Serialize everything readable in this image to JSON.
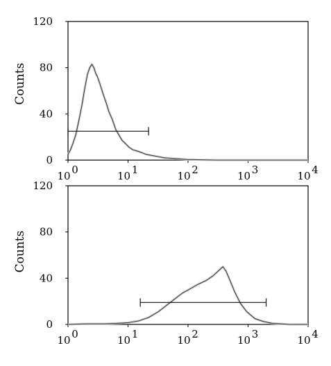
{
  "chart_data": [
    {
      "type": "area",
      "title": "",
      "xlabel": "",
      "ylabel": "Counts",
      "xscale": "log",
      "xlim": [
        1,
        10000
      ],
      "ylim": [
        0,
        120
      ],
      "grid": false,
      "y_ticks": [
        0,
        40,
        80,
        120
      ],
      "x_ticks": [
        {
          "base": "10",
          "exp": "0"
        },
        {
          "base": "10",
          "exp": "1"
        },
        {
          "base": "10",
          "exp": "2"
        },
        {
          "base": "10",
          "exp": "3"
        },
        {
          "base": "10",
          "exp": "4"
        }
      ],
      "series": [
        {
          "x": [
            1.0,
            1.1,
            1.2,
            1.35,
            1.5,
            1.7,
            1.9,
            2.1,
            2.3,
            2.5,
            2.7,
            2.9,
            3.1,
            3.4,
            3.8,
            4.3,
            4.8,
            5.5,
            6.2,
            7.0,
            8.0,
            9.2,
            10.5,
            12,
            14,
            17,
            20,
            25,
            32,
            40,
            55,
            75,
            100,
            150,
            300,
            1000,
            10000
          ],
          "values": [
            5,
            9,
            14,
            22,
            33,
            47,
            62,
            74,
            80,
            83,
            80,
            75,
            72,
            66,
            58,
            50,
            42,
            35,
            27,
            22,
            17,
            14,
            11,
            9,
            8,
            6.5,
            5,
            4,
            3,
            2,
            1.5,
            1,
            0.5,
            0.3,
            0,
            0,
            0
          ]
        }
      ],
      "gate": {
        "x": [
          1.0,
          22
        ],
        "y": 25
      }
    },
    {
      "type": "area",
      "title": "",
      "xlabel": "",
      "ylabel": "Counts",
      "xscale": "log",
      "xlim": [
        1,
        10000
      ],
      "ylim": [
        0,
        120
      ],
      "grid": false,
      "y_ticks": [
        0,
        40,
        80,
        120
      ],
      "x_ticks": [
        {
          "base": "10",
          "exp": "0"
        },
        {
          "base": "10",
          "exp": "1"
        },
        {
          "base": "10",
          "exp": "2"
        },
        {
          "base": "10",
          "exp": "3"
        },
        {
          "base": "10",
          "exp": "4"
        }
      ],
      "series": [
        {
          "x": [
            1,
            2,
            4,
            7,
            10,
            15,
            22,
            32,
            45,
            60,
            80,
            110,
            150,
            200,
            260,
            330,
            380,
            430,
            500,
            600,
            750,
            950,
            1300,
            1800,
            2500,
            3500,
            5000,
            10000
          ],
          "values": [
            0,
            0.5,
            0.5,
            1,
            1.5,
            3,
            6,
            11,
            17,
            22,
            27,
            31,
            35,
            38,
            42,
            47,
            50,
            46,
            38,
            28,
            18,
            11,
            5,
            2.5,
            1,
            0.5,
            0,
            0
          ]
        }
      ],
      "gate": {
        "x": [
          16,
          2000
        ],
        "y": 19
      }
    }
  ]
}
